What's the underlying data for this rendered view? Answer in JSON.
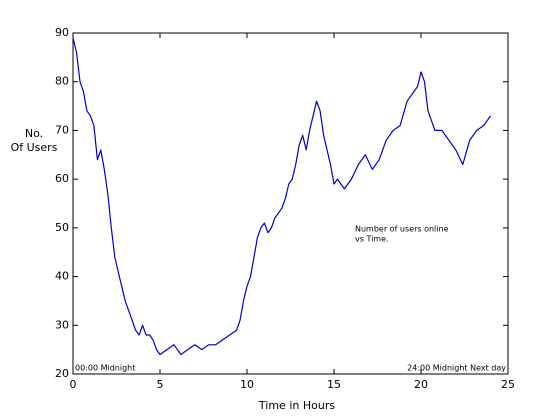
{
  "chart_data": {
    "type": "line",
    "xlabel": "Time in Hours",
    "ylabel": [
      "No.",
      "Of Users"
    ],
    "annotations": {
      "note": [
        "Number of users online",
        "vs Time."
      ],
      "start": "00:00 Midnight",
      "end": "24:00 Midnight Next day"
    },
    "color": "#0000cc",
    "xlim": [
      0,
      25
    ],
    "ylim": [
      20,
      90
    ],
    "xticks": [
      0,
      5,
      10,
      15,
      20,
      25
    ],
    "yticks": [
      20,
      30,
      40,
      50,
      60,
      70,
      80,
      90
    ],
    "x": [
      0,
      0.2,
      0.4,
      0.6,
      0.8,
      1.0,
      1.2,
      1.4,
      1.6,
      1.8,
      2.0,
      2.2,
      2.4,
      2.6,
      2.8,
      3.0,
      3.2,
      3.4,
      3.6,
      3.8,
      4.0,
      4.2,
      4.4,
      4.6,
      4.8,
      5.0,
      5.4,
      5.8,
      6.2,
      6.6,
      7.0,
      7.4,
      7.8,
      8.2,
      8.6,
      9.0,
      9.4,
      9.6,
      9.8,
      10.0,
      10.2,
      10.4,
      10.6,
      10.8,
      11.0,
      11.2,
      11.4,
      11.6,
      11.8,
      12.0,
      12.2,
      12.4,
      12.6,
      12.8,
      13.0,
      13.2,
      13.4,
      13.6,
      13.8,
      14.0,
      14.2,
      14.4,
      14.6,
      14.8,
      15.0,
      15.2,
      15.6,
      16.0,
      16.4,
      16.8,
      17.2,
      17.6,
      18.0,
      18.4,
      18.8,
      19.2,
      19.6,
      19.8,
      20.0,
      20.2,
      20.4,
      20.8,
      21.2,
      21.6,
      22.0,
      22.4,
      22.8,
      23.2,
      23.6,
      24.0
    ],
    "values": [
      89,
      86,
      80,
      78,
      74,
      73,
      71,
      64,
      66,
      62,
      57,
      50,
      44,
      41,
      38,
      35,
      33,
      31,
      29,
      28,
      30,
      28,
      28,
      27,
      25,
      24,
      25,
      26,
      24,
      25,
      26,
      25,
      26,
      26,
      27,
      28,
      29,
      31,
      35,
      38,
      40,
      44,
      48,
      50,
      51,
      49,
      50,
      52,
      53,
      54,
      56,
      59,
      60,
      63,
      67,
      69,
      66,
      70,
      73,
      76,
      74,
      69,
      66,
      63,
      59,
      60,
      58,
      60,
      63,
      65,
      62,
      64,
      68,
      70,
      71,
      76,
      78,
      79,
      82,
      80,
      74,
      70,
      70,
      68,
      66,
      63,
      68,
      70,
      71,
      73
    ]
  }
}
